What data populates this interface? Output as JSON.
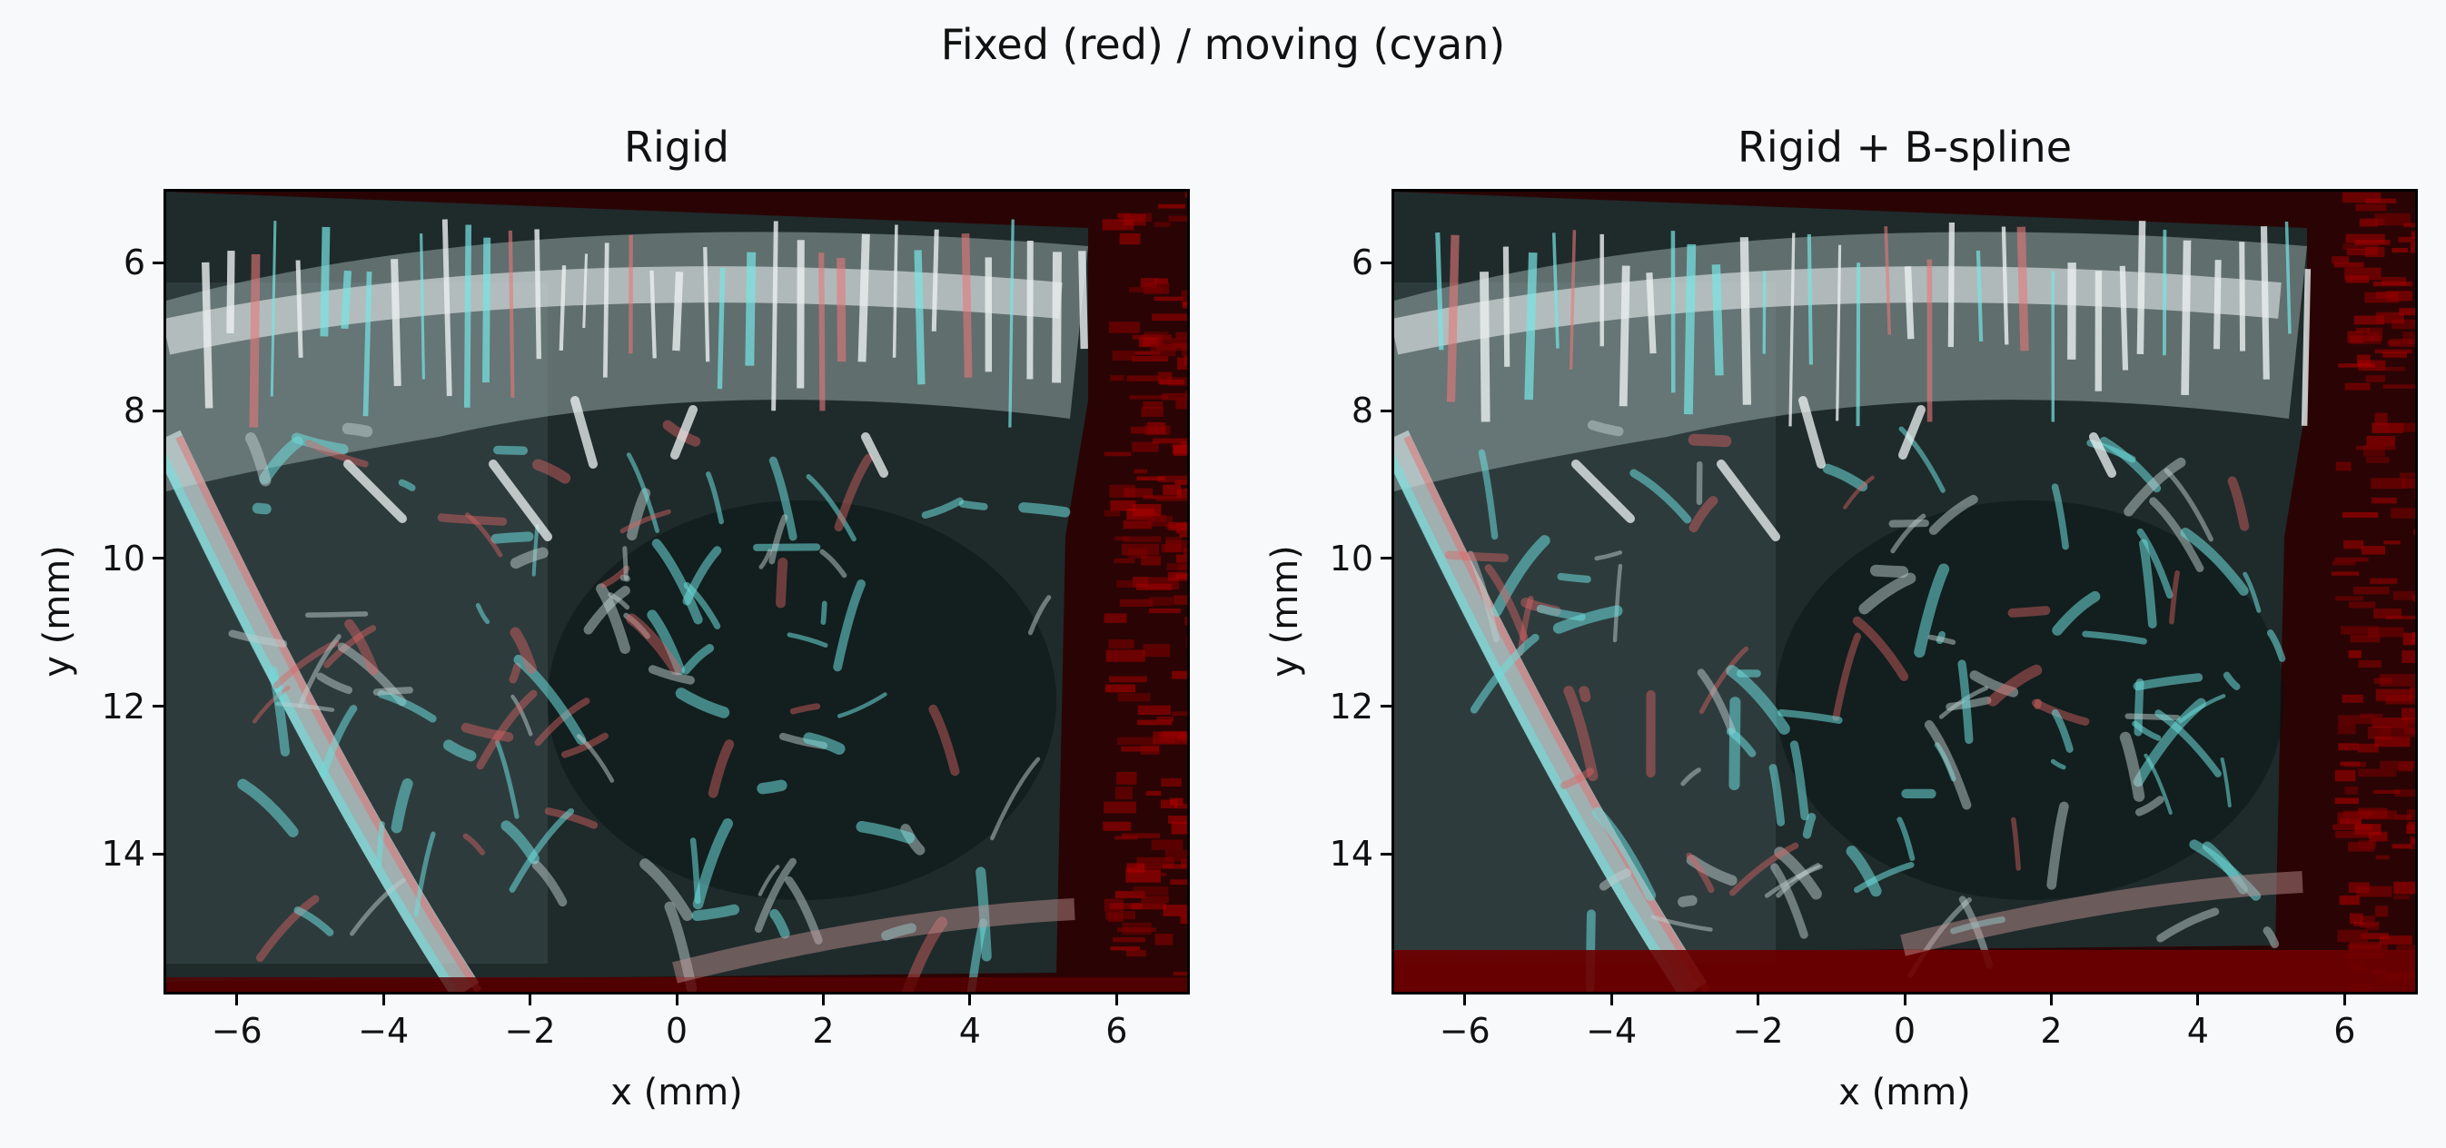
{
  "figure": {
    "suptitle": "Fixed (red) / moving (cyan)",
    "colors": {
      "background": "#f7f9fb",
      "fixed": "#c0262a",
      "moving": "#5fd3d3",
      "tissue": "#1e2a2a",
      "border_red": "#3a0000"
    }
  },
  "chart_data": [
    {
      "type": "heatmap",
      "title": "Rigid",
      "xlabel": "x (mm)",
      "ylabel": "y (mm)",
      "xlim": [
        -7,
        7
      ],
      "ylim": [
        15.9,
        5.0
      ],
      "xticks": [
        "−6",
        "−4",
        "−2",
        "0",
        "2",
        "4",
        "6"
      ],
      "yticks": [
        "6",
        "8",
        "10",
        "12",
        "14"
      ],
      "overlay": "fixed (red) / moving (cyan)"
    },
    {
      "type": "heatmap",
      "title": "Rigid + B-spline",
      "xlabel": "x (mm)",
      "ylabel": "y (mm)",
      "xlim": [
        -7,
        7
      ],
      "ylim": [
        15.9,
        5.0
      ],
      "xticks": [
        "−6",
        "−4",
        "−2",
        "0",
        "2",
        "4",
        "6"
      ],
      "yticks": [
        "6",
        "8",
        "10",
        "12",
        "14"
      ],
      "overlay": "fixed (red) / moving (cyan)"
    }
  ]
}
